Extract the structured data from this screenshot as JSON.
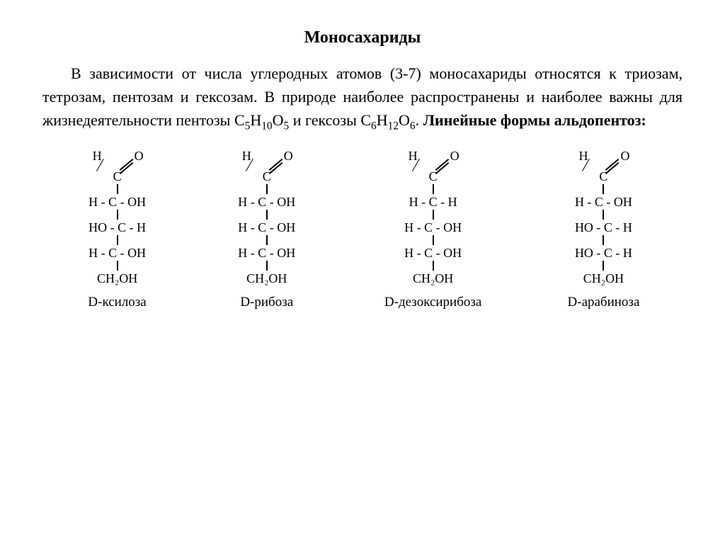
{
  "title": "Моносахариды",
  "paragraph_parts": {
    "p1": "В зависимости от числа углеродных атомов (3-7) моносахариды относятся к триозам, тетрозам, пентозам и гексозам. В природе наиболее распространены и наиболее важны для жизнедеятельности пентозы C",
    "s1": "5",
    "p2": "H",
    "s2": "10",
    "p3": "O",
    "s3": "5",
    "p4": " и гексозы C",
    "s4": "6",
    "p5": "H",
    "s5": "12",
    "p6": "O",
    "s6": "6",
    "p7": ". ",
    "bold_tail": "Линейные формы альдопентоз:"
  },
  "aldehyde": {
    "H": "H",
    "O": "O",
    "C": "C"
  },
  "last_row": "CH₂OH",
  "molecules": [
    {
      "name": "D-ксилоза",
      "rows": [
        "H - C - OH",
        "HO - C - H",
        "H - C - OH"
      ]
    },
    {
      "name": "D-рибоза",
      "rows": [
        "H - C - OH",
        "H - C - OH",
        "H - C - OH"
      ]
    },
    {
      "name": "D-дезоксирибоза",
      "rows": [
        "H - C - H",
        "H - C - OH",
        "H - C - OH"
      ]
    },
    {
      "name": "D-арабиноза",
      "rows": [
        "H - C - OH",
        "HO - C - H",
        "HO - C - H"
      ]
    }
  ],
  "style": {
    "font": "Times New Roman",
    "title_fontsize": 24,
    "body_fontsize": 22,
    "struct_fontsize": 18,
    "background": "#ffffff",
    "text_color": "#000000",
    "bond_color": "#000000"
  }
}
